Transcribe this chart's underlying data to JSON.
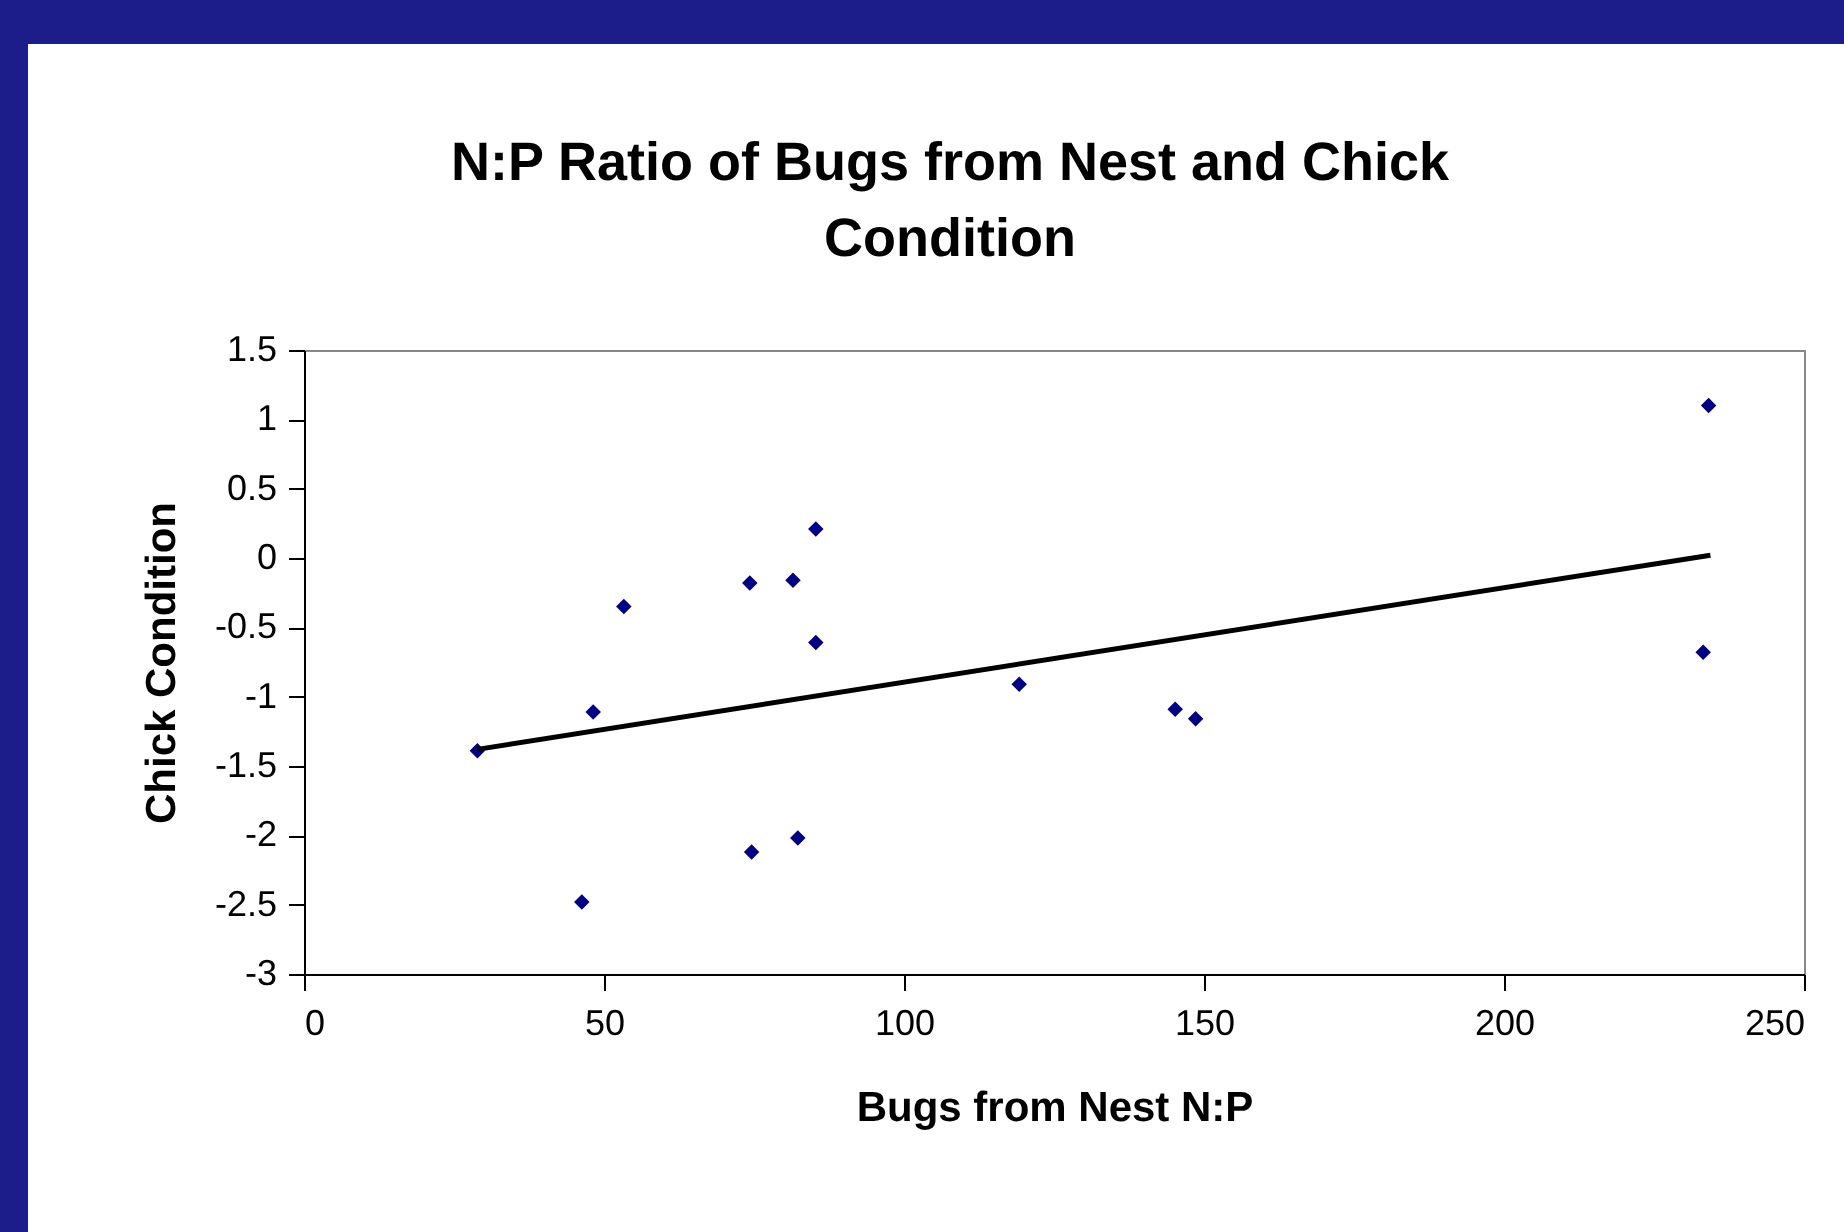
{
  "chart_data": {
    "type": "scatter",
    "title": "N:P Ratio of Bugs from Nest and Chick Condition",
    "xlabel": "Bugs from Nest N:P",
    "ylabel": "Chick Condition",
    "series": [
      {
        "color": "#000080",
        "marker": "diamond",
        "x": [
          28.9,
          48.2,
          53.3,
          74.3,
          81.5,
          85.3,
          85.3,
          119.2,
          46.3,
          74.6,
          82.3,
          145.2,
          148.6,
          234.1,
          233.2
        ],
        "values": [
          -1.39,
          -1.11,
          -0.35,
          -0.18,
          -0.16,
          0.21,
          -0.61,
          -0.91,
          -2.48,
          -2.12,
          -2.02,
          -1.09,
          -1.16,
          1.1,
          -0.68
        ]
      },
      {
        "type": "line",
        "color": "#000000",
        "x": [
          28.9,
          234.4
        ],
        "values": [
          -1.38,
          0.02
        ]
      }
    ],
    "xlim": [
      0,
      250
    ],
    "xticks": [
      0,
      50,
      100,
      150,
      200,
      250
    ],
    "ylim": [
      -3,
      1.5
    ],
    "yticks": [
      -3,
      -2.5,
      -2,
      -1.5,
      -1,
      -0.5,
      0,
      0.5,
      1,
      1.5
    ],
    "grid": false
  }
}
